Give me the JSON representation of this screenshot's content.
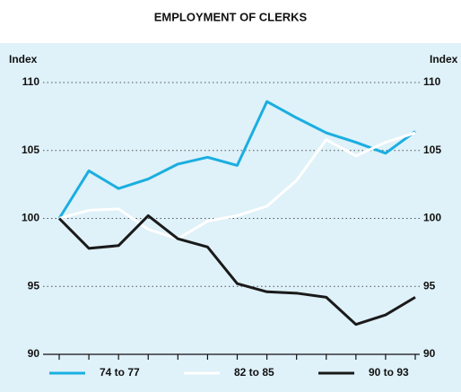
{
  "chart_data": {
    "type": "line",
    "title": "EMPLOYMENT OF CLERKS",
    "y_label": "Index",
    "y2_label": "Index",
    "categories": [
      null,
      null,
      null,
      null,
      null,
      null,
      null,
      null,
      null,
      null,
      null,
      null,
      null
    ],
    "series": [
      {
        "name": "74 to 77",
        "color": "#1aaee0",
        "values": [
          100,
          103.5,
          102.2,
          102.9,
          104.0,
          104.5,
          103.9,
          108.6,
          107.4,
          106.3,
          105.6,
          104.8,
          106.4
        ]
      },
      {
        "name": "82 to 85",
        "color": "#ffffff",
        "values": [
          100,
          100.6,
          100.7,
          99.2,
          98.5,
          99.8,
          100.2,
          100.9,
          102.8,
          105.8,
          104.6,
          105.6,
          106.3
        ]
      },
      {
        "name": "90 to 93",
        "color": "#1a1a1a",
        "values": [
          100,
          97.8,
          98.0,
          100.2,
          98.5,
          97.9,
          95.2,
          94.6,
          94.5,
          94.2,
          92.2,
          92.9,
          94.2
        ]
      }
    ],
    "ylim": [
      90,
      110
    ],
    "yticks": [
      90,
      95,
      100,
      105,
      110
    ],
    "y2lim": [
      90,
      110
    ],
    "y2ticks": [
      90,
      95,
      100,
      105,
      110
    ],
    "grid": true,
    "legend": "bottom",
    "background": "#dff1f9"
  }
}
